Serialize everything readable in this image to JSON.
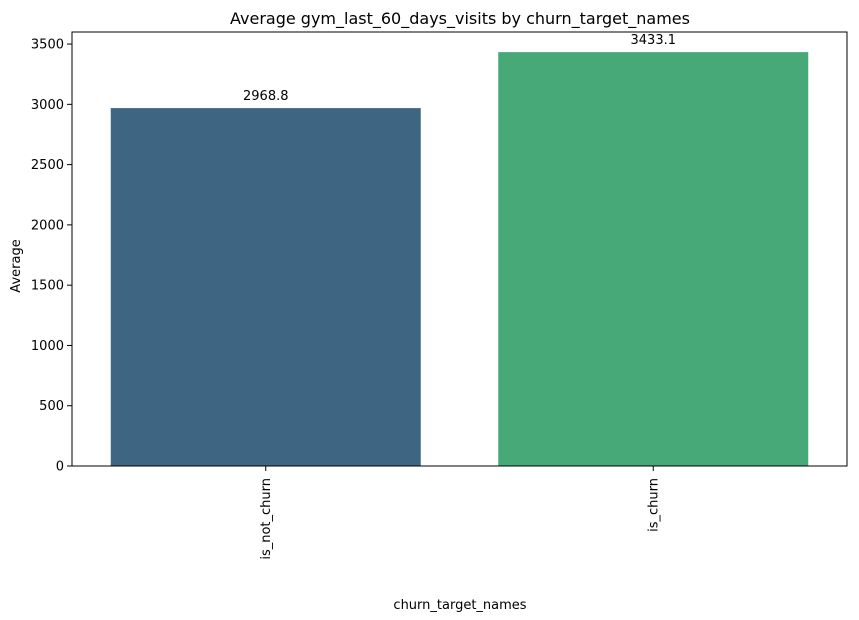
{
  "chart_data": {
    "type": "bar",
    "title": "Average gym_last_60_days_visits by churn_target_names",
    "xlabel": "churn_target_names",
    "ylabel": "Average",
    "categories": [
      "is_not_churn",
      "is_churn"
    ],
    "values": [
      2968.8,
      3433.1
    ],
    "value_labels": [
      "2968.8",
      "3433.1"
    ],
    "bar_colors": [
      "#3e6682",
      "#47a878"
    ],
    "ylim": [
      0,
      3600
    ],
    "yticks": [
      0,
      500,
      1000,
      1500,
      2000,
      2500,
      3000,
      3500
    ],
    "grid": false,
    "legend": "none"
  }
}
